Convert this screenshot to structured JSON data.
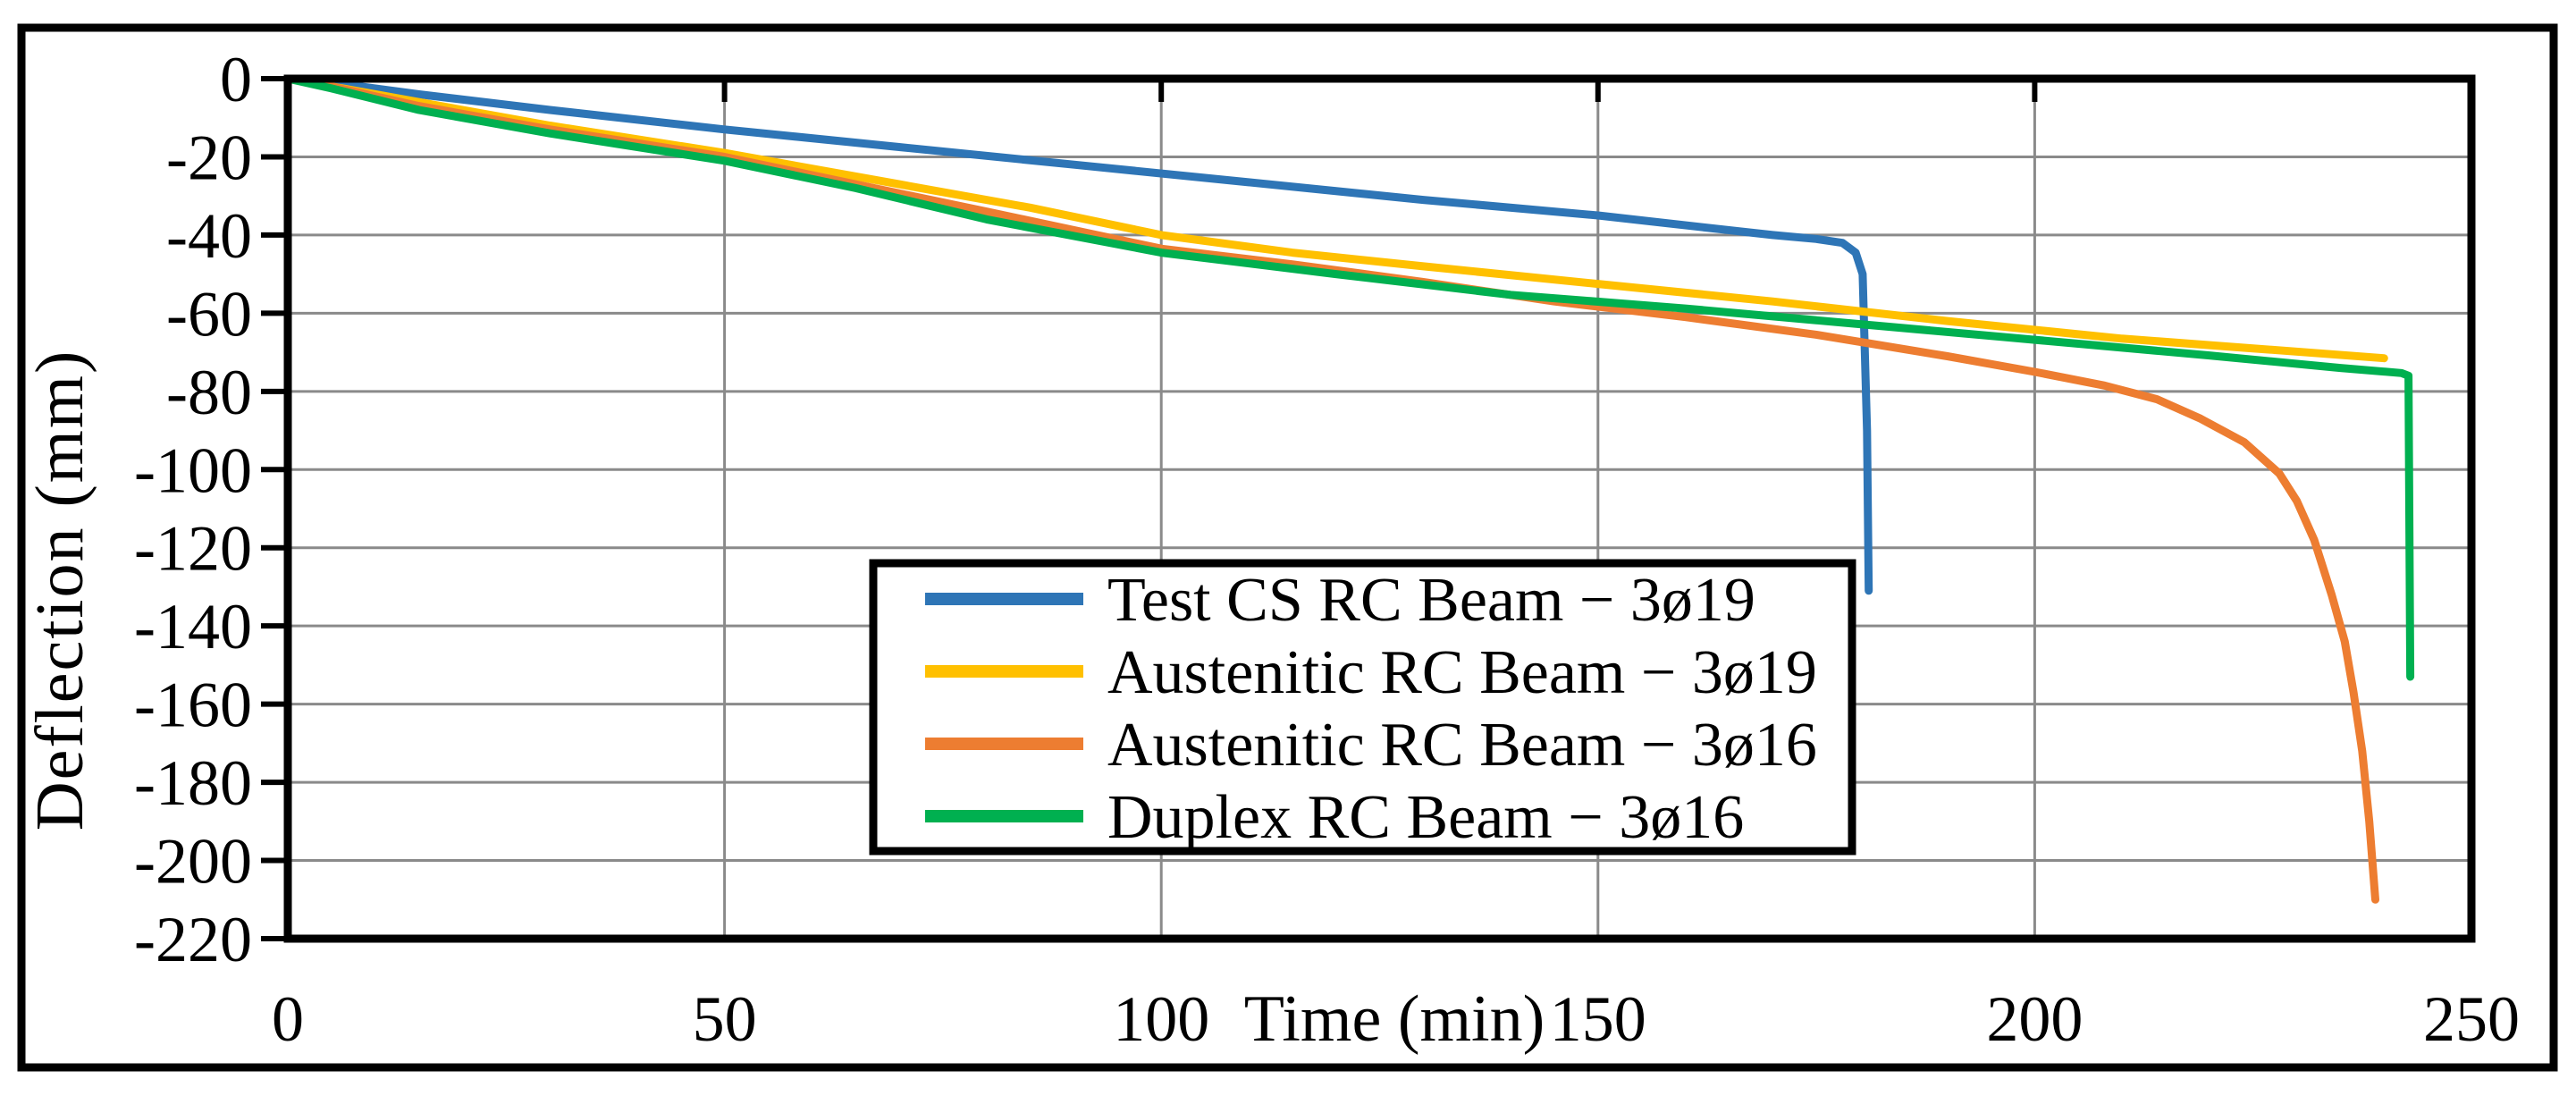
{
  "chart_data": {
    "type": "line",
    "title": "",
    "xlabel": "Time (min)",
    "ylabel": "Deflection (mm)",
    "xlim": [
      0,
      250
    ],
    "ylim": [
      -220,
      0
    ],
    "x_ticks": [
      0,
      50,
      100,
      150,
      200,
      250
    ],
    "y_ticks": [
      0,
      -20,
      -40,
      -60,
      -80,
      -100,
      -120,
      -140,
      -160,
      -180,
      -200,
      -220
    ],
    "grid": true,
    "gridline_color": "#8a8a8a",
    "axis_color": "#000000",
    "background_color": "#ffffff",
    "legend": {
      "position": "inside-bottom-center",
      "border_color": "#000000",
      "fill": "#ffffff"
    },
    "series": [
      {
        "id": "test-cs-rc-beam-3o19",
        "name": "Test CS RC Beam − 3ø19",
        "color": "#2E75B6",
        "points": [
          [
            0,
            0
          ],
          [
            5,
            -1
          ],
          [
            15,
            -4
          ],
          [
            30,
            -8
          ],
          [
            50,
            -13
          ],
          [
            70,
            -17.5
          ],
          [
            90,
            -22
          ],
          [
            110,
            -26.5
          ],
          [
            130,
            -31
          ],
          [
            150,
            -35
          ],
          [
            162,
            -38
          ],
          [
            170,
            -40
          ],
          [
            175,
            -41
          ],
          [
            178,
            -42
          ],
          [
            179.5,
            -44.5
          ],
          [
            180.3,
            -50
          ],
          [
            180.8,
            -90
          ],
          [
            181,
            -131
          ]
        ]
      },
      {
        "id": "austenitic-rc-beam-3o19",
        "name": "Austenitic RC Beam − 3ø19",
        "color": "#FFC000",
        "points": [
          [
            0,
            0
          ],
          [
            5,
            -2
          ],
          [
            15,
            -6
          ],
          [
            30,
            -12
          ],
          [
            50,
            -19
          ],
          [
            70,
            -27
          ],
          [
            85,
            -33
          ],
          [
            100,
            -40
          ],
          [
            115,
            -44.5
          ],
          [
            130,
            -48
          ],
          [
            150,
            -52.5
          ],
          [
            170,
            -57
          ],
          [
            190,
            -62
          ],
          [
            210,
            -66.5
          ],
          [
            225,
            -69
          ],
          [
            240,
            -71.5
          ]
        ]
      },
      {
        "id": "austenitic-rc-beam-3o16",
        "name": "Austenitic RC Beam − 3ø16",
        "color": "#ED7D31",
        "points": [
          [
            0,
            0
          ],
          [
            5,
            -2
          ],
          [
            15,
            -7
          ],
          [
            30,
            -13
          ],
          [
            50,
            -20
          ],
          [
            65,
            -27
          ],
          [
            80,
            -34
          ],
          [
            100,
            -43.5
          ],
          [
            115,
            -47.5
          ],
          [
            130,
            -52
          ],
          [
            145,
            -57
          ],
          [
            160,
            -61
          ],
          [
            175,
            -65.5
          ],
          [
            190,
            -71
          ],
          [
            200,
            -75
          ],
          [
            208,
            -78.5
          ],
          [
            214,
            -82
          ],
          [
            219,
            -87
          ],
          [
            224,
            -93
          ],
          [
            228,
            -101
          ],
          [
            230,
            -108
          ],
          [
            232,
            -118
          ],
          [
            234,
            -132
          ],
          [
            235.5,
            -144
          ],
          [
            236.5,
            -157
          ],
          [
            237.5,
            -172
          ],
          [
            238.3,
            -190
          ],
          [
            239,
            -210
          ]
        ]
      },
      {
        "id": "duplex-rc-beam-3o16",
        "name": "Duplex RC Beam − 3ø16",
        "color": "#00B050",
        "points": [
          [
            0,
            0
          ],
          [
            5,
            -2.5
          ],
          [
            15,
            -8
          ],
          [
            30,
            -14
          ],
          [
            50,
            -21
          ],
          [
            65,
            -28
          ],
          [
            80,
            -36
          ],
          [
            100,
            -44.5
          ],
          [
            120,
            -50
          ],
          [
            140,
            -55.3
          ],
          [
            160,
            -58.8
          ],
          [
            180,
            -62.8
          ],
          [
            200,
            -66.8
          ],
          [
            220,
            -70.8
          ],
          [
            235,
            -74
          ],
          [
            242,
            -75.3
          ],
          [
            242.8,
            -76
          ],
          [
            243,
            -153
          ]
        ]
      }
    ]
  }
}
